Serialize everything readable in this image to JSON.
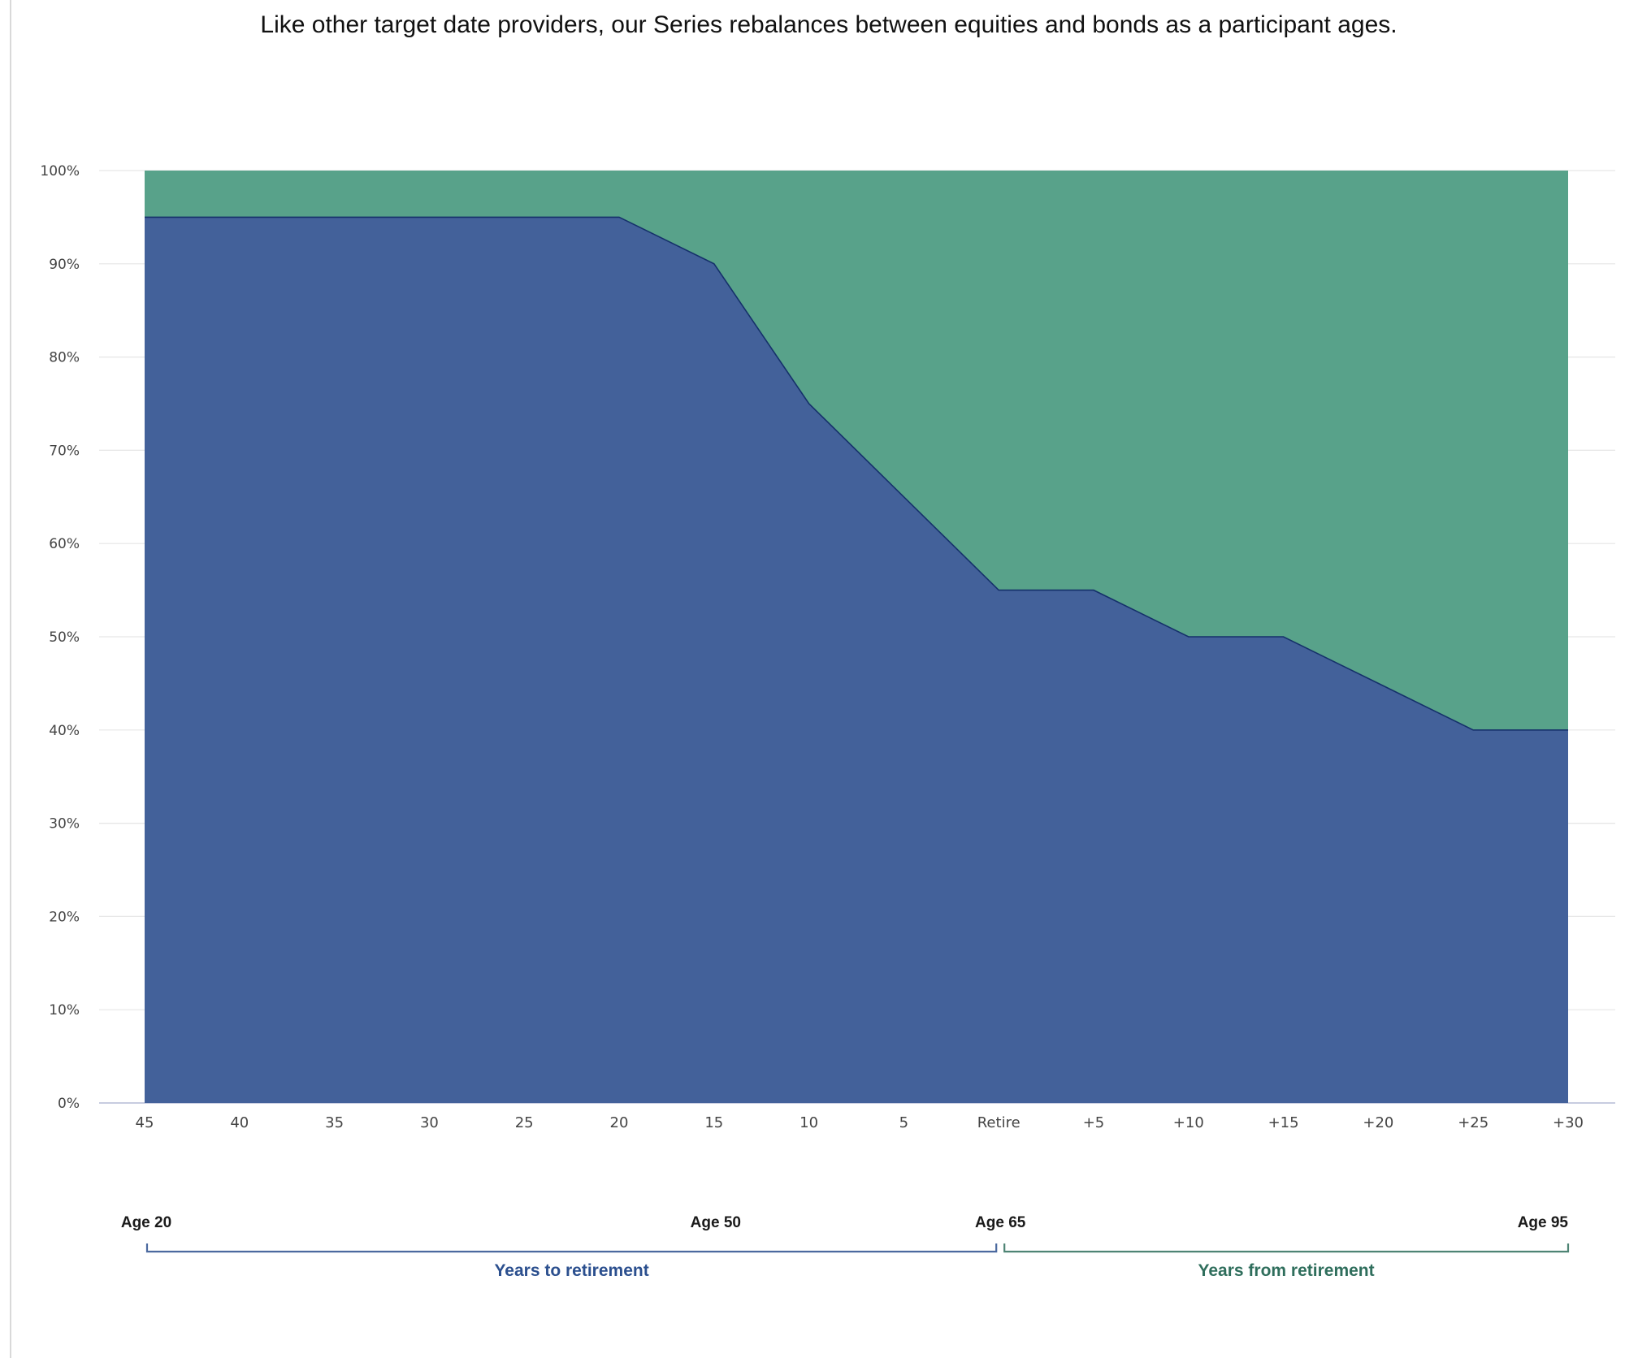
{
  "headline": "Like other target date providers, our Series rebalances between equities and bonds as a participant ages.",
  "chart_data": {
    "type": "area",
    "stacked": true,
    "categories": [
      "45",
      "40",
      "35",
      "30",
      "25",
      "20",
      "15",
      "10",
      "5",
      "Retire",
      "+5",
      "+10",
      "+15",
      "+20",
      "+25",
      "+30"
    ],
    "series": [
      {
        "color": "#43619a",
        "values": [
          95,
          95,
          95,
          95,
          95,
          95,
          90,
          75,
          65,
          55,
          55,
          50,
          50,
          45,
          40,
          40
        ]
      },
      {
        "color": "#58a28a",
        "values": [
          5,
          5,
          5,
          5,
          5,
          5,
          10,
          25,
          35,
          45,
          45,
          50,
          50,
          55,
          60,
          60
        ]
      }
    ],
    "ylim": [
      0,
      100
    ],
    "yticks": [
      "0%",
      "10%",
      "20%",
      "30%",
      "40%",
      "50%",
      "60%",
      "70%",
      "80%",
      "90%",
      "100%"
    ],
    "grid": true,
    "legend": "none",
    "age_markers": [
      {
        "label": "Age 20",
        "at": "45"
      },
      {
        "label": "Age 50",
        "at": "15"
      },
      {
        "label": "Age 65",
        "at": "Retire"
      },
      {
        "label": "Age 95",
        "at": "+30"
      }
    ],
    "brackets": [
      {
        "label": "Years to retirement",
        "from": "45",
        "to": "Retire",
        "color": "#2b4f8e"
      },
      {
        "label": "Years from retirement",
        "from": "Retire",
        "to": "+30",
        "color": "#2f6e5c"
      }
    ]
  }
}
